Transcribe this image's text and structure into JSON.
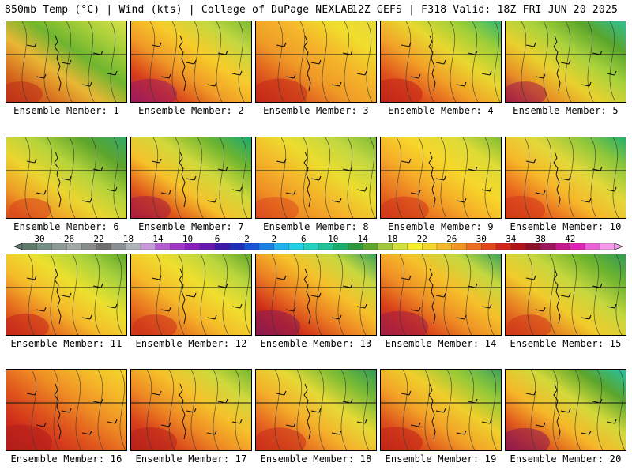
{
  "header": {
    "left": "850mb Temp (°C) | Wind (kts) | College of DuPage NEXLAB",
    "right": "12Z GEFS | F318 Valid: 18Z FRI JUN 20 2025"
  },
  "members": [
    {
      "label": "Ensemble Member: 1",
      "warmth": 0.45,
      "colors": [
        "#d9e14a",
        "#a7cf3a",
        "#6fb52f",
        "#e9b734",
        "#d66a1e",
        "#be2f18"
      ]
    },
    {
      "label": "Ensemble Member: 2",
      "warmth": 0.6,
      "colors": [
        "#79b835",
        "#c4d840",
        "#f7cc2a",
        "#f09a27",
        "#d83d1a",
        "#9c1a5e"
      ]
    },
    {
      "label": "Ensemble Member: 3",
      "warmth": 0.62,
      "colors": [
        "#e5d93a",
        "#f1dd2c",
        "#f4b52a",
        "#f09a27",
        "#de5a1c",
        "#c22618"
      ]
    },
    {
      "label": "Ensemble Member: 4",
      "warmth": 0.62,
      "colors": [
        "#2fb76e",
        "#9fcf38",
        "#e8d82f",
        "#f2a127",
        "#e0511d",
        "#c12218"
      ]
    },
    {
      "label": "Ensemble Member: 5",
      "warmth": 0.45,
      "colors": [
        "#2fbf9a",
        "#5aa52c",
        "#a8d23c",
        "#e9d12e",
        "#e88c24",
        "#a31a45"
      ]
    },
    {
      "label": "Ensemble Member: 6",
      "warmth": 0.42,
      "colors": [
        "#32a86a",
        "#5ea52b",
        "#b5d43b",
        "#ecd52f",
        "#ee9c25",
        "#d8401b"
      ]
    },
    {
      "label": "Ensemble Member: 7",
      "warmth": 0.55,
      "colors": [
        "#18a873",
        "#6fb52f",
        "#d2d93b",
        "#f6c12a",
        "#e0551d",
        "#a61b3c"
      ]
    },
    {
      "label": "Ensemble Member: 8",
      "warmth": 0.5,
      "colors": [
        "#7cbc34",
        "#c4d840",
        "#ecdc2e",
        "#f4b52a",
        "#ef8d24",
        "#da4a1c"
      ]
    },
    {
      "label": "Ensemble Member: 9",
      "warmth": 0.52,
      "colors": [
        "#7cbc34",
        "#dedb37",
        "#f7d62a",
        "#f5ac28",
        "#e96f20",
        "#cf331a"
      ]
    },
    {
      "label": "Ensemble Member: 10",
      "warmth": 0.55,
      "colors": [
        "#1fae6a",
        "#8fc73a",
        "#e3d83a",
        "#f6b829",
        "#e9661f",
        "#d2361a"
      ]
    },
    {
      "label": "Ensemble Member: 11",
      "warmth": 0.5,
      "colors": [
        "#5ea52b",
        "#a8d23c",
        "#ece02e",
        "#f5bb2a",
        "#e66a1f",
        "#c5241a"
      ]
    },
    {
      "label": "Ensemble Member: 12",
      "warmth": 0.45,
      "colors": [
        "#5ea52b",
        "#b9d63d",
        "#f0de2e",
        "#f5ba29",
        "#e8701f",
        "#cc2e19"
      ]
    },
    {
      "label": "Ensemble Member: 13",
      "warmth": 0.7,
      "colors": [
        "#3aa35a",
        "#c8d83f",
        "#f6c12a",
        "#ec7e22",
        "#cf2d19",
        "#8a1752"
      ]
    },
    {
      "label": "Ensemble Member: 14",
      "warmth": 0.65,
      "colors": [
        "#3aa35a",
        "#c4d840",
        "#f6c12a",
        "#ef8d24",
        "#d83d1a",
        "#a31a45"
      ]
    },
    {
      "label": "Ensemble Member: 15",
      "warmth": 0.45,
      "colors": [
        "#2d9a55",
        "#6fb52f",
        "#c6d73e",
        "#f1cc2c",
        "#e67a22",
        "#cf331a"
      ]
    },
    {
      "label": "Ensemble Member: 16",
      "warmth": 0.75,
      "colors": [
        "#f4d82c",
        "#f5b82a",
        "#ef8d24",
        "#e0571d",
        "#ce2b19",
        "#b01e1c"
      ]
    },
    {
      "label": "Ensemble Member: 17",
      "warmth": 0.6,
      "colors": [
        "#6fb52f",
        "#cfd93c",
        "#f6c12a",
        "#ee8a24",
        "#d8401b",
        "#b7201a"
      ]
    },
    {
      "label": "Ensemble Member: 18",
      "warmth": 0.58,
      "colors": [
        "#2d9a55",
        "#7cbc34",
        "#e6d936",
        "#f4b02a",
        "#e6671f",
        "#c92c19"
      ]
    },
    {
      "label": "Ensemble Member: 19",
      "warmth": 0.62,
      "colors": [
        "#3aa35a",
        "#93c938",
        "#f0cf2c",
        "#f2a127",
        "#de4f1c",
        "#c12218"
      ]
    },
    {
      "label": "Ensemble Member: 20",
      "warmth": 0.55,
      "colors": [
        "#22c3a8",
        "#5aa52c",
        "#d4d93a",
        "#f6b829",
        "#e0571d",
        "#8c1651"
      ]
    }
  ],
  "colorbar": {
    "tick_labels": [
      "-30",
      "-26",
      "-22",
      "-18",
      "-14",
      "-10",
      "-6",
      "-2",
      "2",
      "6",
      "10",
      "14",
      "18",
      "22",
      "26",
      "30",
      "34",
      "38",
      "42"
    ],
    "colors": [
      "#5e7a6d",
      "#768f84",
      "#8e9a94",
      "#a2aaa8",
      "#888a8c",
      "#6c6e70",
      "#8c8f92",
      "#b0b4bb",
      "#c79ad8",
      "#b45fd1",
      "#a238c8",
      "#8a1fbf",
      "#6a16b3",
      "#3d17a9",
      "#1e2eb8",
      "#1555d6",
      "#1a82e6",
      "#1fb1ee",
      "#22d0e5",
      "#22d3bf",
      "#1fc397",
      "#16ad6d",
      "#2b9a3b",
      "#5fa62a",
      "#a1c93a",
      "#d4e13c",
      "#f6f129",
      "#f5d62a",
      "#f5b82a",
      "#f19424",
      "#ec6d1f",
      "#e2461b",
      "#d02718",
      "#b2141a",
      "#8f1128",
      "#a0155e",
      "#c4188d",
      "#e023b8",
      "#ec61d7",
      "#f39aea"
    ]
  }
}
